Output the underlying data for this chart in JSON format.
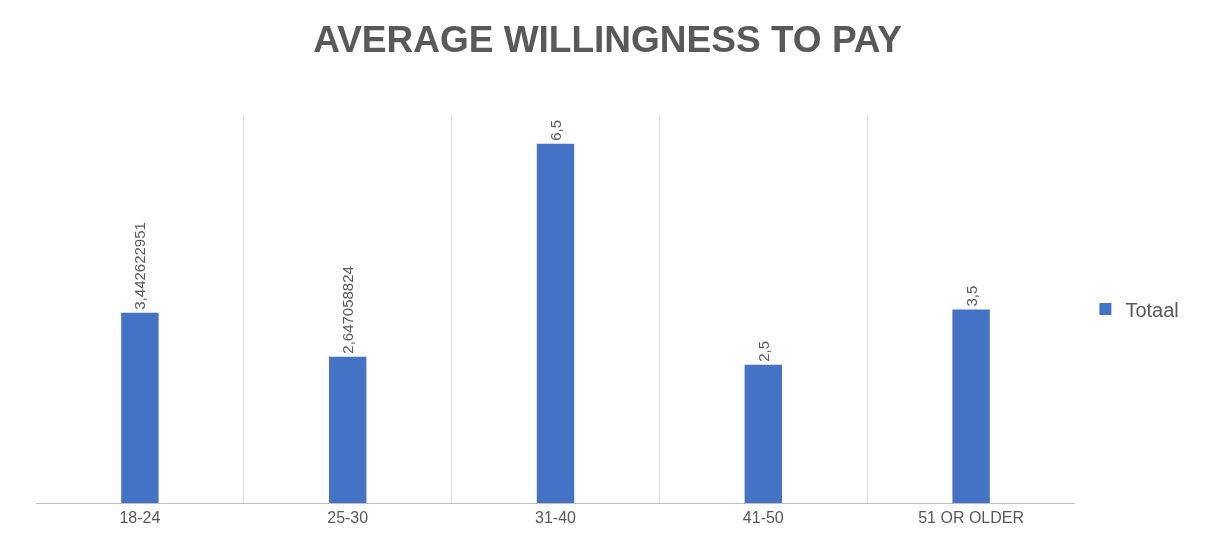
{
  "chart_data": {
    "type": "bar",
    "title": "AVERAGE WILLINGNESS TO PAY",
    "categories": [
      "18-24",
      "25-30",
      "31-40",
      "41-50",
      "51 OR OLDER"
    ],
    "series": [
      {
        "name": "Totaal",
        "color": "#4472c4",
        "values": [
          3.442622951,
          2.647058824,
          6.5,
          2.5,
          3.5
        ],
        "value_labels": [
          "3,442622951",
          "2,647058824",
          "6,5",
          "2,5",
          "3,5"
        ]
      }
    ],
    "grid": "x",
    "legend": "right"
  }
}
